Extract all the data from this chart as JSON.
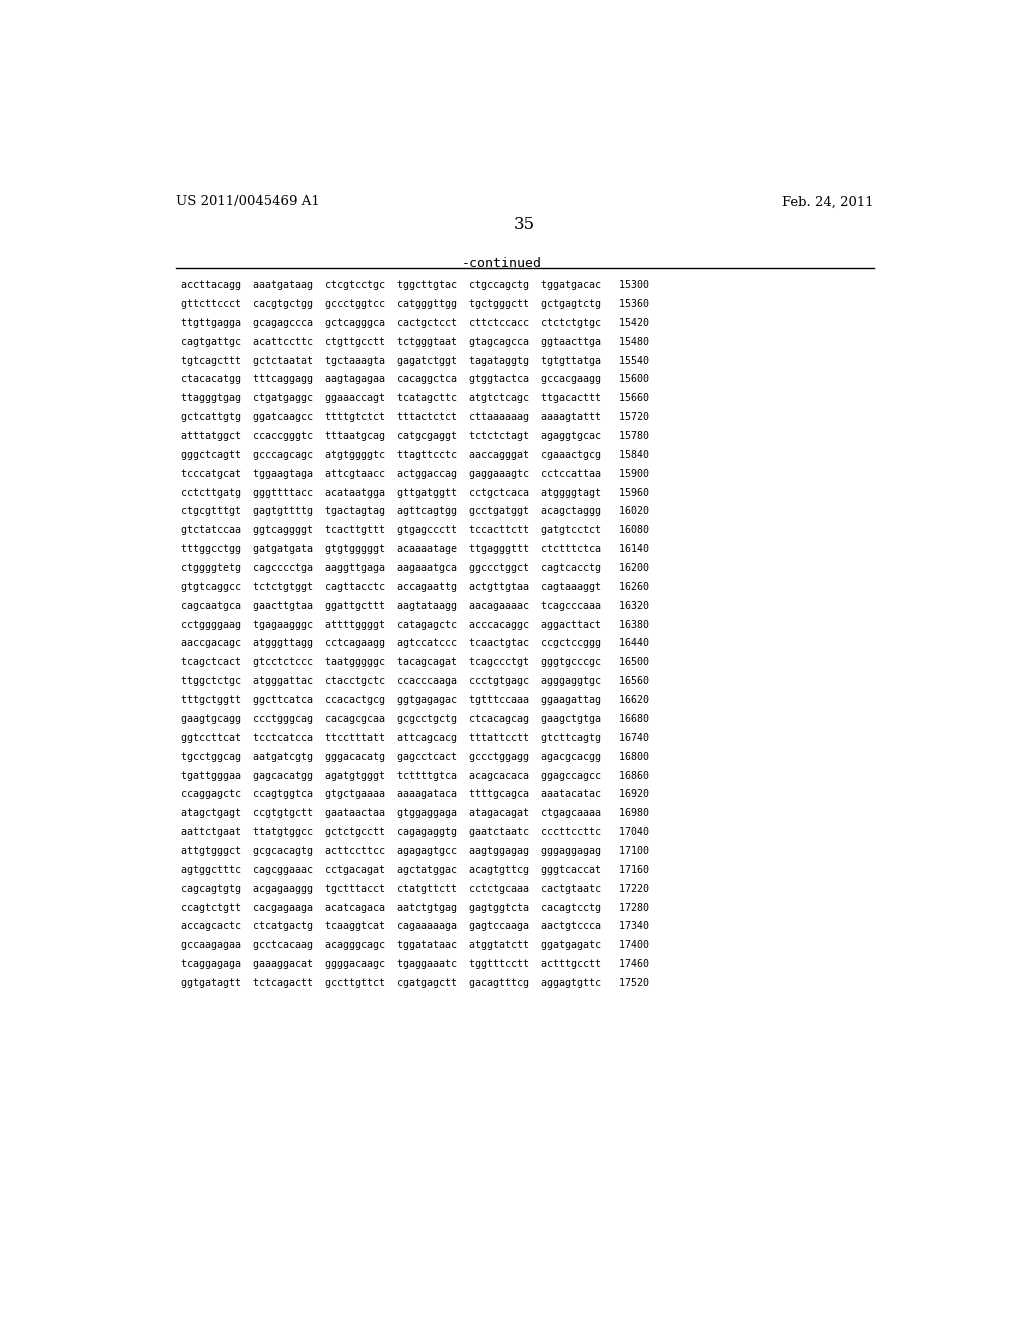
{
  "header_left": "US 2011/0045469 A1",
  "header_right": "Feb. 24, 2011",
  "page_number": "35",
  "continued_label": "-continued",
  "background_color": "#ffffff",
  "text_color": "#000000",
  "font_size_header": 9.5,
  "font_size_page": 12,
  "font_size_continued": 9.5,
  "font_size_sequence": 7.2,
  "sequence_lines": [
    "accttacagg  aaatgataag  ctcgtcctgc  tggcttgtac  ctgccagctg  tggatgacac   15300",
    "gttcttccct  cacgtgctgg  gccctggtcc  catgggttgg  tgctgggctt  gctgagtctg   15360",
    "ttgttgagga  gcagagccca  gctcagggca  cactgctcct  cttctccacc  ctctctgtgc   15420",
    "cagtgattgc  acattccttc  ctgttgcctt  tctgggtaat  gtagcagcca  ggtaacttga   15480",
    "tgtcagcttt  gctctaatat  tgctaaagta  gagatctggt  tagataggtg  tgtgttatga   15540",
    "ctacacatgg  tttcaggagg  aagtagagaa  cacaggctca  gtggtactca  gccacgaagg   15600",
    "ttagggtgag  ctgatgaggc  ggaaaccagt  tcatagcttc  atgtctcagc  ttgacacttt   15660",
    "gctcattgtg  ggatcaagcc  ttttgtctct  tttactctct  cttaaaaaag  aaaagtattt   15720",
    "atttatggct  ccaccgggtc  tttaatgcag  catgcgaggt  tctctctagt  agaggtgcac   15780",
    "gggctcagtt  gcccagcagc  atgtggggtc  ttagttcctc  aaccagggat  cgaaactgcg   15840",
    "tcccatgcat  tggaagtaga  attcgtaacc  actggaccag  gaggaaagtc  cctccattaa   15900",
    "cctcttgatg  gggttttacc  acataatgga  gttgatggtt  cctgctcaca  atggggtagt   15960",
    "ctgcgtttgt  gagtgttttg  tgactagtag  agttcagtgg  gcctgatggt  acagctaggg   16020",
    "gtctatccaa  ggtcaggggt  tcacttgttt  gtgagccctt  tccacttctt  gatgtcctct   16080",
    "tttggcctgg  gatgatgata  gtgtgggggt  acaaaatage  ttgagggttt  ctctttctca   16140",
    "ctggggtetg  cagcccctga  aaggttgaga  aagaaatgca  ggccctggct  cagtcacctg   16200",
    "gtgtcaggcc  tctctgtggt  cagttacctc  accagaattg  actgttgtaa  cagtaaaggt   16260",
    "cagcaatgca  gaacttgtaa  ggattgcttt  aagtataagg  aacagaaaac  tcagcccaaa   16320",
    "cctggggaag  tgagaagggc  attttggggt  catagagctc  acccacaggc  aggacttact   16380",
    "aaccgacagc  atgggttagg  cctcagaagg  agtccatccc  tcaactgtac  ccgctccggg   16440",
    "tcagctcact  gtcctctccc  taatgggggc  tacagcagat  tcagccctgt  gggtgcccgc   16500",
    "ttggctctgc  atgggattac  ctacctgctc  ccacccaaga  ccctgtgagc  agggaggtgc   16560",
    "tttgctggtt  ggcttcatca  ccacactgcg  ggtgagagac  tgtttccaaa  ggaagattag   16620",
    "gaagtgcagg  ccctgggcag  cacagcgcaa  gcgcctgctg  ctcacagcag  gaagctgtga   16680",
    "ggtccttcat  tcctcatcca  ttcctttatt  attcagcacg  tttattcctt  gtcttcagtg   16740",
    "tgcctggcag  aatgatcgtg  gggacacatg  gagcctcact  gccctggagg  agacgcacgg   16800",
    "tgattgggaa  gagcacatgg  agatgtgggt  tcttttgtca  acagcacaca  ggagccagcc   16860",
    "ccaggagctc  ccagtggtca  gtgctgaaaa  aaaagataca  ttttgcagca  aaatacatac   16920",
    "atagctgagt  ccgtgtgctt  gaataactaa  gtggaggaga  atagacagat  ctgagcaaaa   16980",
    "aattctgaat  ttatgtggcc  gctctgcctt  cagagaggtg  gaatctaatc  cccttccttc   17040",
    "attgtgggct  gcgcacagtg  acttccttcc  agagagtgcc  aagtggagag  gggaggagag   17100",
    "agtggctttc  cagcggaaac  cctgacagat  agctatggac  acagtgttcg  gggtcaccat   17160",
    "cagcagtgtg  acgagaaggg  tgctttacct  ctatgttctt  cctctgcaaa  cactgtaatc   17220",
    "ccagtctgtt  cacgagaaga  acatcagaca  aatctgtgag  gagtggtcta  cacagtcctg   17280",
    "accagcactc  ctcatgactg  tcaaggtcat  cagaaaaaga  gagtccaaga  aactgtccca   17340",
    "gccaagagaa  gcctcacaag  acagggcagc  tggatataac  atggtatctt  ggatgagatc   17400",
    "tcaggagaga  gaaaggacat  ggggacaagc  tgaggaaatc  tggtttcctt  actttgcctt   17460",
    "ggtgatagtt  tctcagactt  gccttgttct  cgatgagctt  gacagtttcg  aggagtgttc   17520"
  ]
}
